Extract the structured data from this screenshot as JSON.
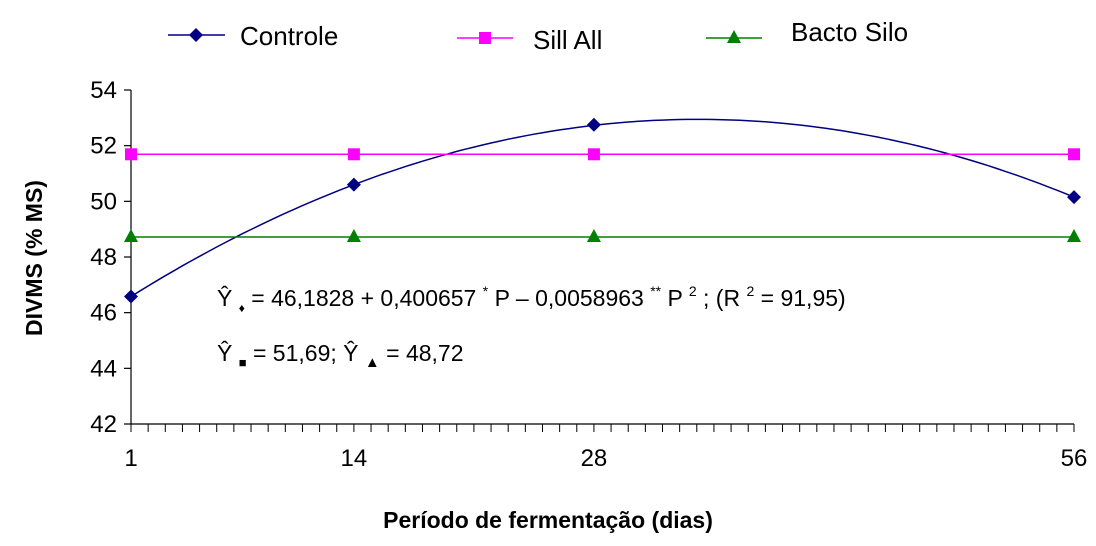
{
  "chart_data": {
    "type": "line",
    "title": "",
    "xlabel": "Período de fermentação (dias)",
    "ylabel": "DIVMS (% MS)",
    "xlim": [
      1,
      56
    ],
    "ylim": [
      42,
      54
    ],
    "x_ticks": [
      "1",
      "14",
      "28",
      "56"
    ],
    "y_ticks": [
      "42",
      "44",
      "46",
      "48",
      "50",
      "52",
      "54"
    ],
    "legend_position": "top",
    "series": [
      {
        "name": "Controle",
        "color": "#000080",
        "marker": "diamond",
        "smooth": true,
        "x": [
          1,
          14,
          28,
          56
        ],
        "y": [
          46.58,
          50.6,
          52.75,
          50.15
        ]
      },
      {
        "name": "Sill All",
        "color": "#ff00ff",
        "marker": "square",
        "x": [
          1,
          14,
          28,
          56
        ],
        "y": [
          51.69,
          51.69,
          51.69,
          51.69
        ]
      },
      {
        "name": "Bacto Silo",
        "color": "#008000",
        "marker": "triangle",
        "x": [
          1,
          14,
          28,
          56
        ],
        "y": [
          48.72,
          48.72,
          48.72,
          48.72
        ]
      }
    ],
    "annotations": {
      "eq1_yhat": "Ŷ",
      "eq1_marker": "♦",
      "eq1_part1": "= 46,1828 + 0,400657 ",
      "eq1_sup1": "*",
      "eq1_part2": "P – 0,0058963 ",
      "eq1_sup2": "**",
      "eq1_part3": "P",
      "eq1_sup3": "2",
      "eq1_part4": "; (R",
      "eq1_sup4": "2",
      "eq1_part5": " = 91,95)",
      "eq2_yhat1": "Ŷ",
      "eq2_marker1": "■",
      "eq2_part1": "= 51,69; ",
      "eq2_yhat2": "Ŷ",
      "eq2_marker2": "▲",
      "eq2_part2": "= 48,72"
    }
  }
}
